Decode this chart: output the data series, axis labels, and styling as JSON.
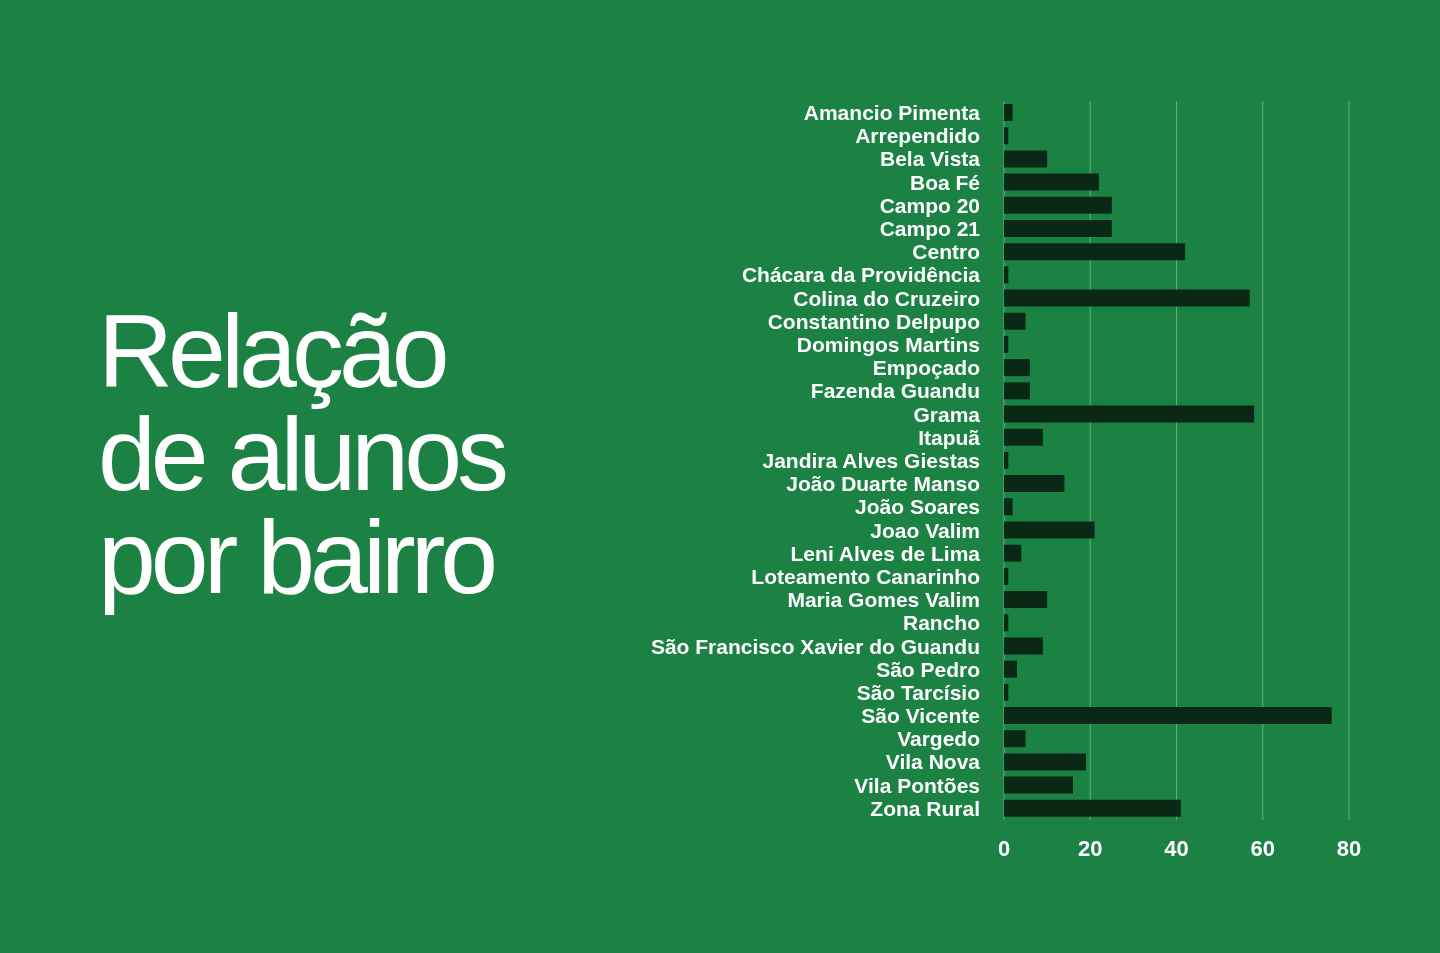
{
  "chart_data": {
    "type": "bar",
    "orientation": "horizontal",
    "title": "Relação\nde alunos\npor bairro",
    "categories": [
      "Amancio Pimenta",
      "Arrependido",
      "Bela Vista",
      "Boa Fé",
      "Campo 20",
      "Campo 21",
      "Centro",
      "Chácara da Providência",
      "Colina do Cruzeiro",
      "Constantino Delpupo",
      "Domingos Martins",
      "Empoçado",
      "Fazenda Guandu",
      "Grama",
      "Itapuã",
      "Jandira Alves Giestas",
      "João Duarte Manso",
      "João Soares",
      "Joao Valim",
      "Leni Alves de Lima",
      "Loteamento Canarinho",
      "Maria Gomes Valim",
      "Rancho",
      "São Francisco Xavier do Guandu",
      "São Pedro",
      "São Tarcísio",
      "São Vicente",
      "Vargedo",
      "Vila Nova",
      "Vila Pontões",
      "Zona Rural"
    ],
    "values": [
      2,
      1,
      10,
      22,
      25,
      25,
      42,
      1,
      57,
      5,
      1,
      6,
      6,
      58,
      9,
      1,
      14,
      2,
      21,
      4,
      1,
      10,
      1,
      9,
      3,
      1,
      76,
      5,
      19,
      16,
      41
    ],
    "color": "#0a2816",
    "xlim": [
      0,
      80
    ],
    "xticks": [
      0,
      20,
      40,
      60,
      80
    ],
    "grid": "x"
  }
}
